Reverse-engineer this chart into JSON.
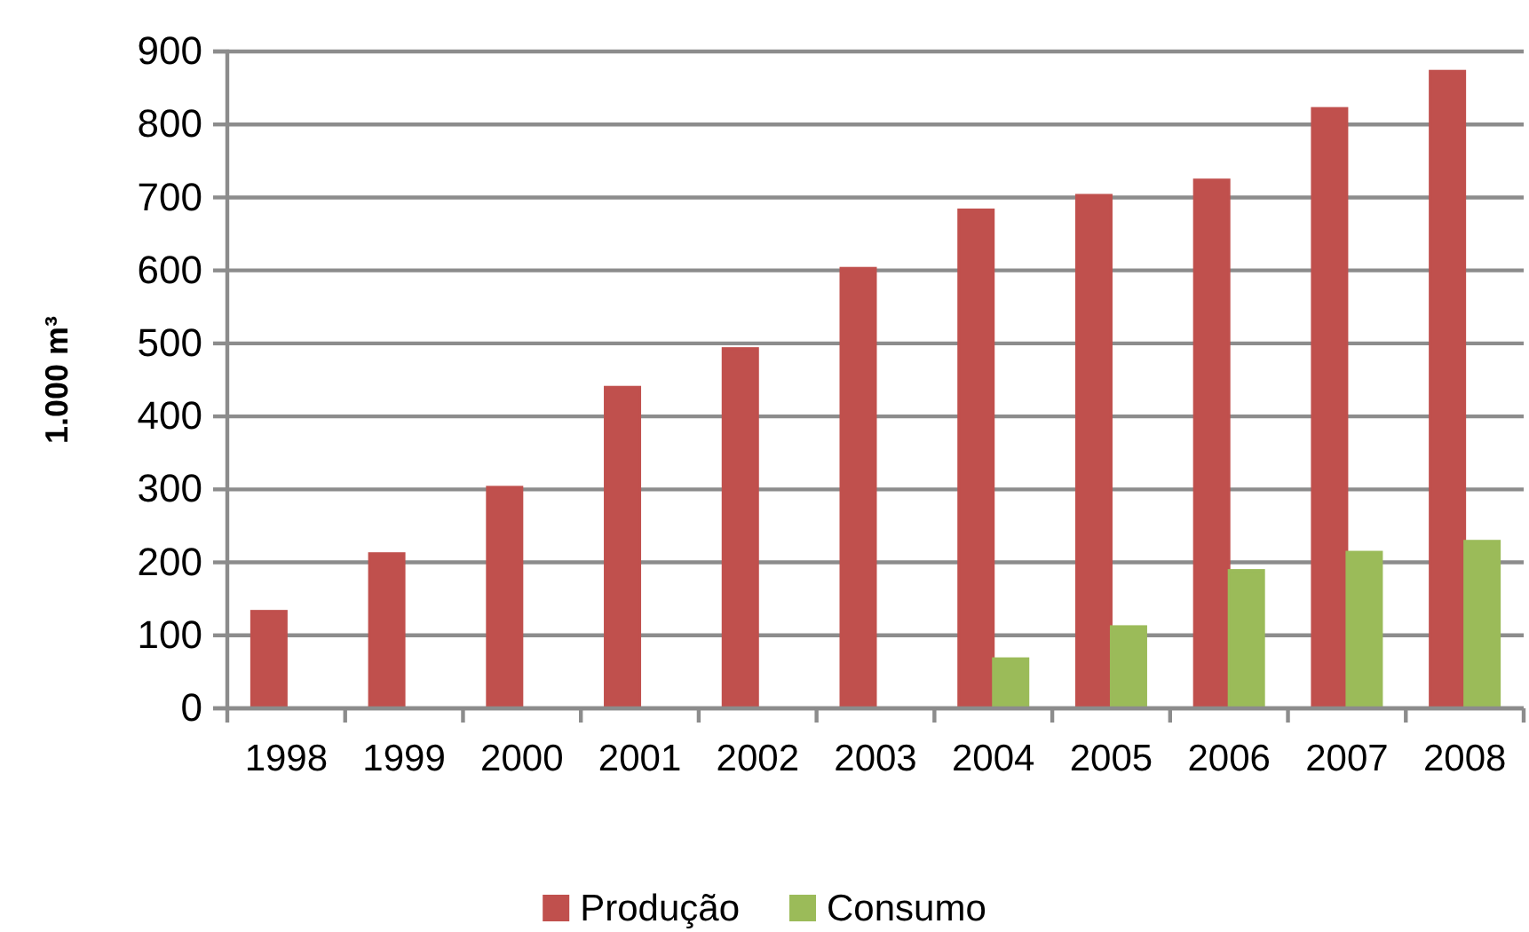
{
  "chart_data": {
    "type": "bar",
    "ylabel": "1.000 m³",
    "categories": [
      "1998",
      "1999",
      "2000",
      "2001",
      "2002",
      "2003",
      "2004",
      "2005",
      "2006",
      "2007",
      "2008"
    ],
    "series": [
      {
        "name": "Produção",
        "color": "#c0504d",
        "values": [
          133,
          212,
          303,
          440,
          493,
          603,
          683,
          703,
          724,
          822,
          873
        ]
      },
      {
        "name": "Consumo",
        "color": "#9bbb59",
        "values": [
          0,
          0,
          0,
          0,
          0,
          0,
          68,
          112,
          189,
          214,
          229
        ]
      }
    ],
    "ylim": [
      0,
      900
    ],
    "yticks": [
      0,
      100,
      200,
      300,
      400,
      500,
      600,
      700,
      800,
      900
    ],
    "grid": "y",
    "legend": "bottom"
  }
}
